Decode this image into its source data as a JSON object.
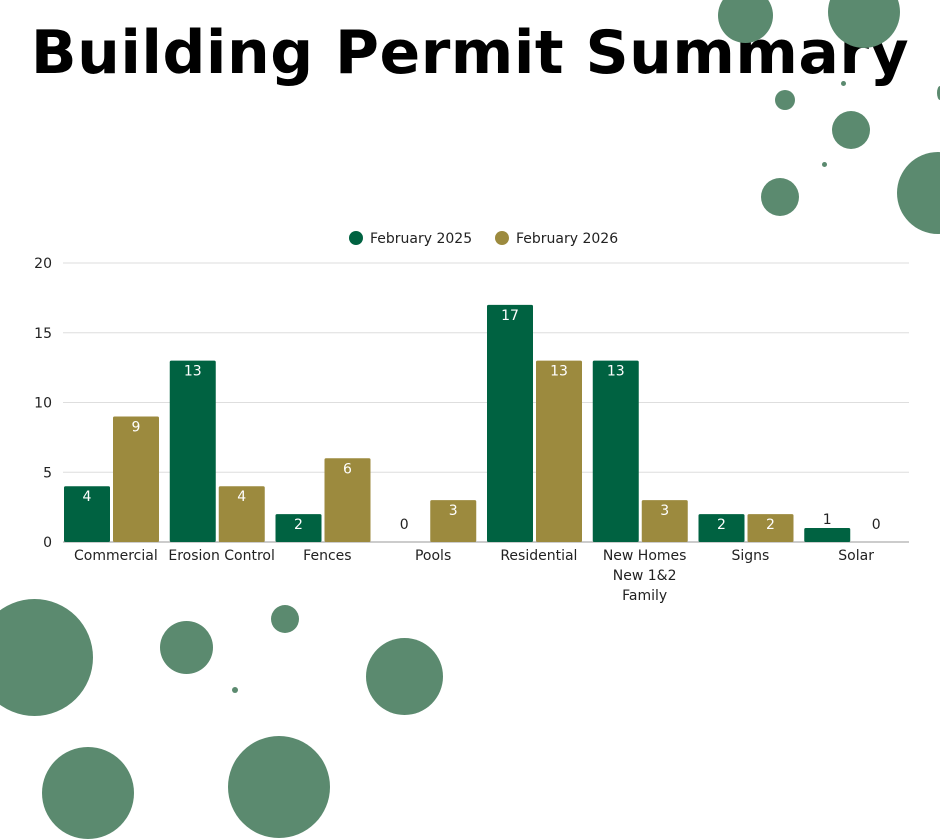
{
  "page": {
    "title": "Building Permit Summary",
    "dot_color": "#5b8a6f"
  },
  "chart_data": {
    "type": "bar",
    "categories": [
      "Commercial",
      "Erosion Control",
      "Fences",
      "Pools",
      "Residential",
      "New Homes New 1&2 Family",
      "Signs",
      "Solar"
    ],
    "category_lines": [
      [
        "Commercial"
      ],
      [
        "Erosion Control"
      ],
      [
        "Fences"
      ],
      [
        "Pools"
      ],
      [
        "Residential"
      ],
      [
        "New Homes",
        "New 1&2",
        "Family"
      ],
      [
        "Signs"
      ],
      [
        "Solar"
      ]
    ],
    "series": [
      {
        "name": "February 2025",
        "color": "#006241",
        "values": [
          4,
          13,
          2,
          0,
          17,
          13,
          2,
          1
        ]
      },
      {
        "name": "February 2026",
        "color": "#9c8a3e",
        "values": [
          9,
          4,
          6,
          3,
          13,
          3,
          2,
          0
        ]
      }
    ],
    "ylim": [
      0,
      20
    ],
    "yticks": [
      0,
      5,
      10,
      15,
      20
    ],
    "grid": true,
    "legend_position": "top-center",
    "data_labels": true
  }
}
